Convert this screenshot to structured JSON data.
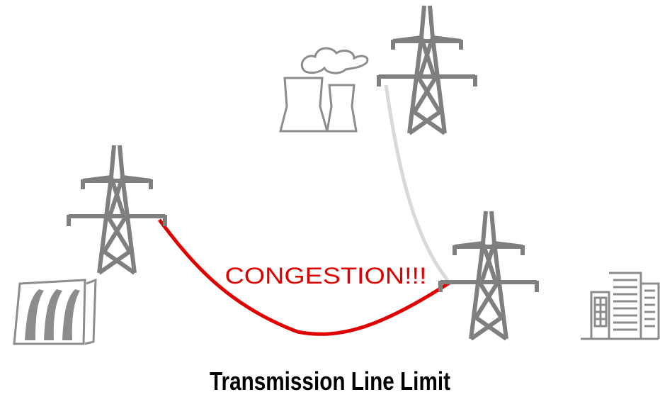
{
  "labels": {
    "congestion": "CONGESTION!!!",
    "caption": "Transmission Line Limit"
  }
}
